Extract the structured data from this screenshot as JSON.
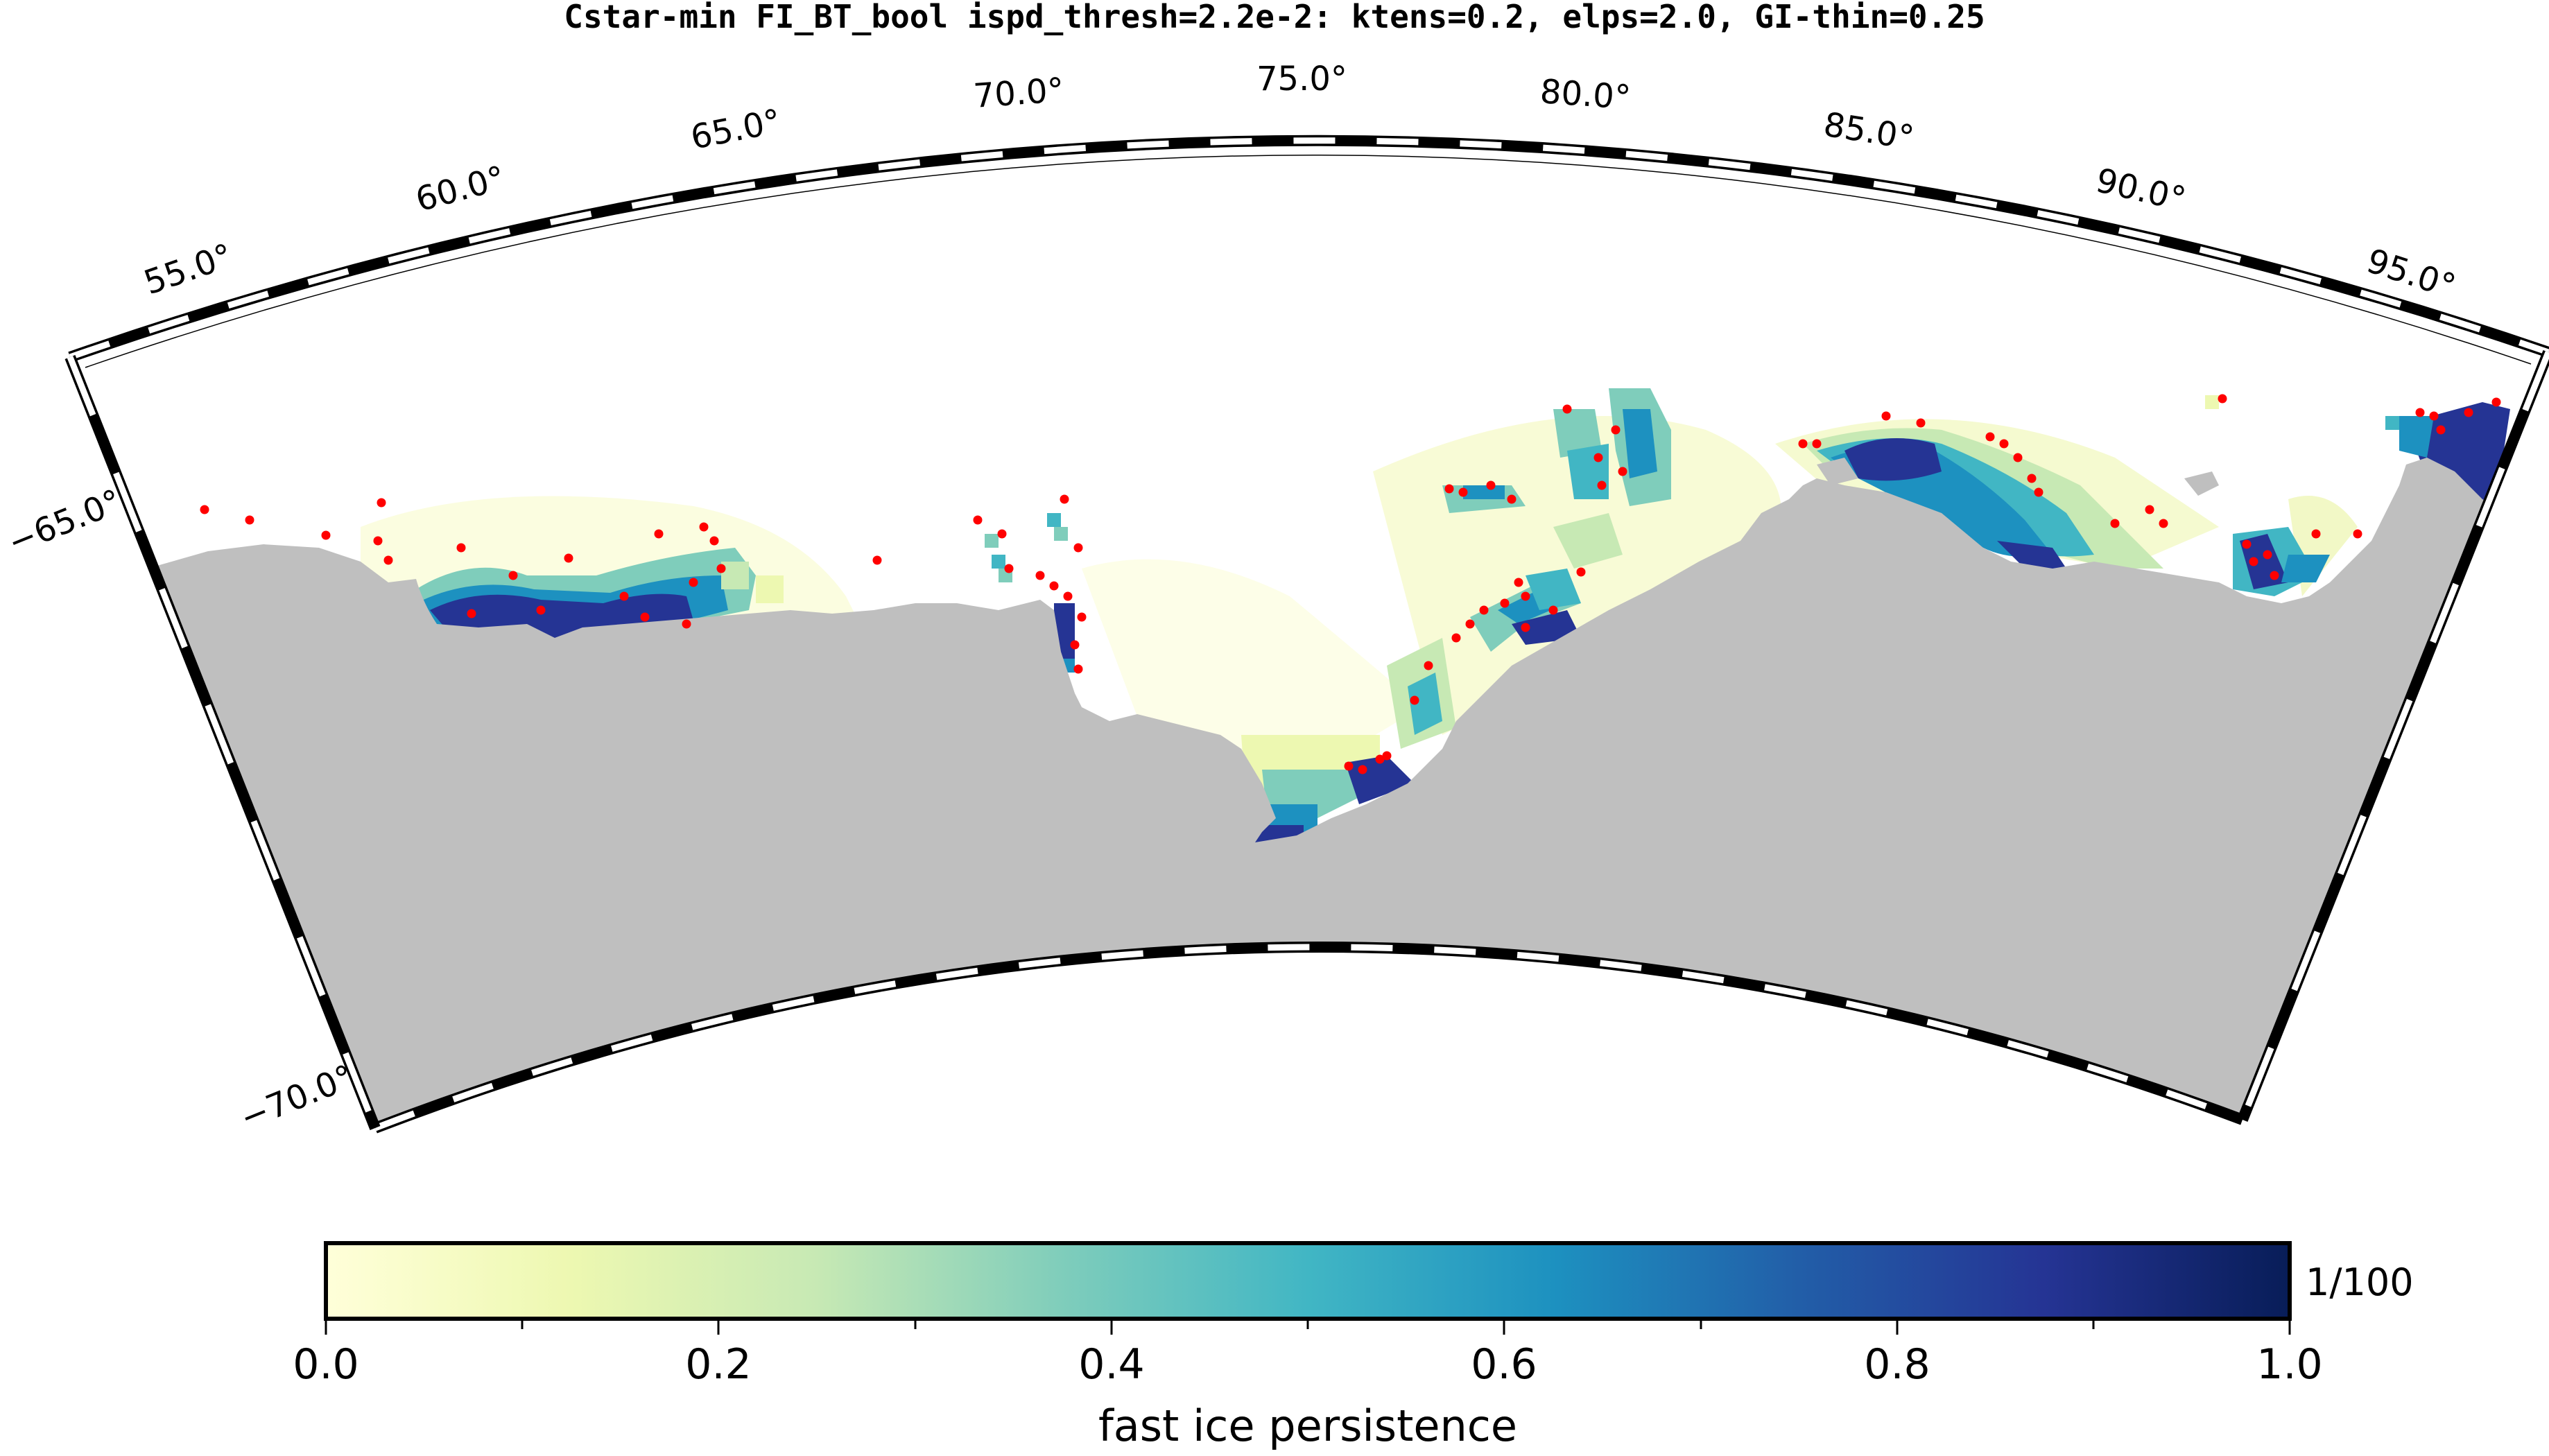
{
  "title": "Cstar-min FI_BT_bool ispd_thresh=2.2e-2: ktens=0.2, elps=2.0, GI-thin=0.25",
  "map": {
    "projection": "polar stereographic sector",
    "lon_range": [
      52,
      98
    ],
    "lat_range": [
      -70.5,
      -62.5
    ],
    "lon_ticks": [
      "55.0°",
      "60.0°",
      "65.0°",
      "70.0°",
      "75.0°",
      "80.0°",
      "85.0°",
      "90.0°",
      "95.0°"
    ],
    "lat_ticks": [
      "−65.0°",
      "−70.0°"
    ],
    "land_color": "#bfbfbf",
    "grounded_iceberg_color": "#ff0000"
  },
  "colorbar": {
    "label": "fast ice persistence",
    "unit": "1/100",
    "range": [
      0.0,
      1.0
    ],
    "tick_labels": [
      "0.0",
      "0.2",
      "0.4",
      "0.6",
      "0.8",
      "1.0"
    ],
    "colors": [
      "#ffffd9",
      "#edf8b1",
      "#c7e9b4",
      "#7fcdbb",
      "#41b6c4",
      "#1d91c0",
      "#225ea8",
      "#253494",
      "#081d58"
    ]
  }
}
